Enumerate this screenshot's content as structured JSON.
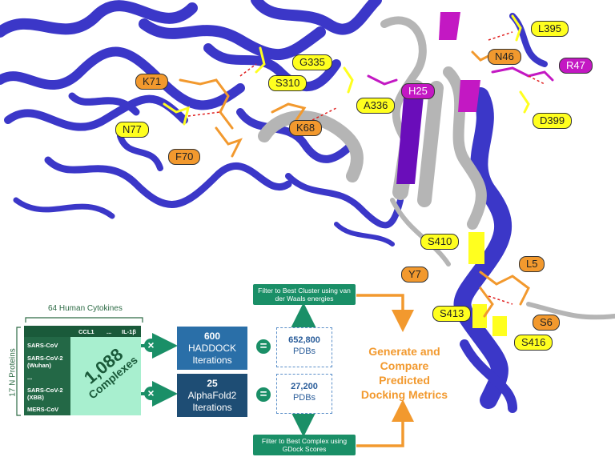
{
  "residue_labels": {
    "k71": "K71",
    "n77": "N77",
    "f70": "F70",
    "s310": "S310",
    "g335": "G335",
    "a336": "A336",
    "k68": "K68",
    "h25": "H25",
    "l395": "L395",
    "n46": "N46",
    "r47": "R47",
    "d399": "D399",
    "s410": "S410",
    "y7": "Y7",
    "l5": "L5",
    "s413": "S413",
    "s6": "S6",
    "s416": "S416"
  },
  "table": {
    "top_label": "64 Human Cytokines",
    "side_label": "17 N Proteins",
    "col_headers": [
      "CCL1",
      "...",
      "IL-1β"
    ],
    "rows": [
      "SARS-CoV",
      "SARS-CoV-2 (Wuhan)",
      "...",
      "SARS-CoV-2 (XBB)",
      "MERS-CoV"
    ],
    "count": "1,088",
    "count_label": "Complexes"
  },
  "operators": {
    "multiply": "×",
    "equals": "="
  },
  "haddock": {
    "count": "600",
    "name": "HADDOCK",
    "unit": "Iterations",
    "pdbs": "652,800",
    "pdbs_label": "PDBs"
  },
  "alphafold": {
    "count": "25",
    "name": "AlphaFold2",
    "unit": "Iterations",
    "pdbs": "27,200",
    "pdbs_label": "PDBs"
  },
  "filter_top": "Filter to Best Cluster using van der Waals energies",
  "filter_bottom": "Filter to Best Complex using GDock Scores",
  "output": "Generate and Compare Predicted Docking Metrics",
  "colors": {
    "protein_blue": "#3b37c8",
    "grey_ribbon": "#b5b5b5",
    "orange": "#f2992e",
    "yellow": "#ffff1f",
    "magenta": "#c318c3",
    "teal": "#1a8f67",
    "haddock_blue": "#2a6fa8",
    "alphafold_navy": "#1e4d74"
  }
}
